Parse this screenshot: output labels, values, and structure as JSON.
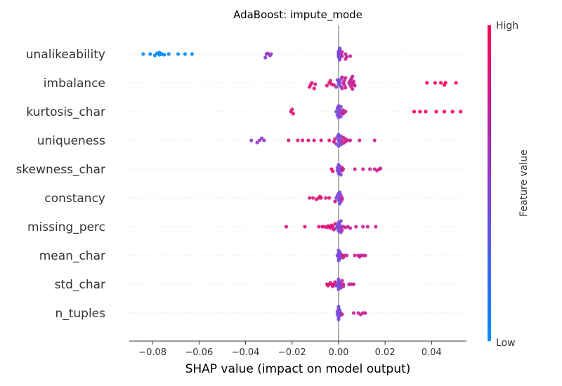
{
  "chart_data": {
    "type": "scatter",
    "subtype": "shap-beeswarm",
    "title": "AdaBoost: impute_mode",
    "xlabel": "SHAP value (impact on model output)",
    "xlim": [
      -0.09,
      0.055
    ],
    "xticks": [
      -0.08,
      -0.06,
      -0.04,
      -0.02,
      0.0,
      0.02,
      0.04
    ],
    "xtick_labels": [
      "−0.08",
      "−0.06",
      "−0.04",
      "−0.02",
      "0.00",
      "0.02",
      "0.04"
    ],
    "colorbar": {
      "label": "Feature value",
      "high": "High",
      "low": "Low",
      "low_color": "#008bfb",
      "high_color": "#ff0052"
    },
    "features": [
      {
        "name": "unalikeability",
        "points": [
          [
            -0.084,
            0
          ],
          [
            -0.081,
            0
          ],
          [
            -0.079,
            0.2
          ],
          [
            -0.078,
            -0.1
          ],
          [
            -0.077,
            0.1
          ],
          [
            -0.077,
            -0.2
          ],
          [
            -0.076,
            0
          ],
          [
            -0.075,
            0.1
          ],
          [
            -0.073,
            0
          ],
          [
            -0.069,
            0
          ],
          [
            -0.066,
            0
          ],
          [
            -0.063,
            0
          ],
          [
            -0.0315,
            0.5
          ],
          [
            -0.031,
            0
          ],
          [
            -0.0305,
            -0.1
          ],
          [
            -0.0295,
            0.2
          ],
          [
            -0.029,
            0
          ],
          [
            0.0,
            0
          ],
          [
            0.0,
            0.2
          ],
          [
            0.0,
            -0.2
          ],
          [
            0.0,
            0.4
          ],
          [
            0.0,
            -0.4
          ],
          [
            0.0005,
            0.6
          ],
          [
            0.0005,
            -0.6
          ],
          [
            0.0005,
            0.8
          ],
          [
            0.0005,
            -0.8
          ],
          [
            0.001,
            0.1
          ],
          [
            0.001,
            -0.1
          ],
          [
            0.0015,
            0.3
          ],
          [
            0.0015,
            -0.3
          ],
          [
            0.003,
            0.7
          ],
          [
            0.003,
            0
          ],
          [
            0.0035,
            0.4
          ],
          [
            0.005,
            0.3
          ]
        ]
      },
      {
        "name": "imbalance",
        "points": [
          [
            -0.0125,
            0.6
          ],
          [
            -0.012,
            0.3
          ],
          [
            -0.0115,
            0
          ],
          [
            -0.0105,
            0.8
          ],
          [
            -0.01,
            0.2
          ],
          [
            -0.005,
            0.4
          ],
          [
            -0.004,
            0
          ],
          [
            -0.0035,
            -0.3
          ],
          [
            -0.003,
            0.2
          ],
          [
            -0.002,
            0.3
          ],
          [
            -0.001,
            0.6
          ],
          [
            -0.0005,
            -0.4
          ],
          [
            0.0,
            0.2
          ],
          [
            0.0,
            -0.2
          ],
          [
            0.0005,
            0
          ],
          [
            0.001,
            0.5
          ],
          [
            0.001,
            -0.5
          ],
          [
            0.0015,
            0.8
          ],
          [
            0.0015,
            -0.8
          ],
          [
            0.002,
            0
          ],
          [
            0.0025,
            0.3
          ],
          [
            0.0025,
            -0.3
          ],
          [
            0.003,
            0.7
          ],
          [
            0.003,
            -0.7
          ],
          [
            0.0045,
            0
          ],
          [
            0.005,
            0.3
          ],
          [
            0.005,
            -0.3
          ],
          [
            0.0055,
            0.6
          ],
          [
            0.0055,
            -0.6
          ],
          [
            0.006,
            0
          ],
          [
            0.006,
            0.9
          ],
          [
            0.006,
            -0.9
          ],
          [
            0.0065,
            0.2
          ],
          [
            0.0065,
            -0.2
          ],
          [
            0.007,
            0.4
          ],
          [
            0.038,
            0
          ],
          [
            0.0415,
            0
          ],
          [
            0.044,
            0
          ],
          [
            0.0455,
            0.3
          ],
          [
            0.046,
            0
          ],
          [
            0.0505,
            0
          ]
        ]
      },
      {
        "name": "kurtosis_char",
        "points": [
          [
            -0.0205,
            0
          ],
          [
            -0.0195,
            0.3
          ],
          [
            -0.02,
            -0.3
          ],
          [
            -0.001,
            0
          ],
          [
            -0.0005,
            0.5
          ],
          [
            -0.0005,
            -0.5
          ],
          [
            0.0,
            0.2
          ],
          [
            0.0,
            -0.2
          ],
          [
            0.0,
            0.8
          ],
          [
            0.0,
            -0.8
          ],
          [
            0.0005,
            0.4
          ],
          [
            0.0005,
            -0.4
          ],
          [
            0.001,
            0
          ],
          [
            0.001,
            0.7
          ],
          [
            0.001,
            -0.7
          ],
          [
            0.0015,
            0.2
          ],
          [
            0.002,
            -0.2
          ],
          [
            0.002,
            0.3
          ],
          [
            0.003,
            0
          ],
          [
            0.0325,
            0
          ],
          [
            0.035,
            0
          ],
          [
            0.0375,
            0
          ],
          [
            0.042,
            0
          ],
          [
            0.0455,
            0
          ],
          [
            0.049,
            0
          ],
          [
            0.0525,
            0
          ]
        ]
      },
      {
        "name": "uniqueness",
        "points": [
          [
            -0.0375,
            0
          ],
          [
            -0.035,
            0.3
          ],
          [
            -0.034,
            0
          ],
          [
            -0.033,
            -0.3
          ],
          [
            -0.032,
            0
          ],
          [
            -0.0215,
            0
          ],
          [
            -0.0175,
            0
          ],
          [
            -0.0155,
            0
          ],
          [
            -0.013,
            0
          ],
          [
            -0.0105,
            0
          ],
          [
            -0.0075,
            0
          ],
          [
            -0.004,
            0
          ],
          [
            -0.002,
            0.2
          ],
          [
            -0.0015,
            -0.2
          ],
          [
            -0.001,
            0.5
          ],
          [
            -0.0005,
            -0.5
          ],
          [
            0.0,
            0
          ],
          [
            0.0,
            0.8
          ],
          [
            0.0,
            -0.8
          ],
          [
            0.0005,
            0.3
          ],
          [
            0.0005,
            -0.3
          ],
          [
            0.001,
            0.6
          ],
          [
            0.001,
            -0.6
          ],
          [
            0.0015,
            0
          ],
          [
            0.002,
            0.4
          ],
          [
            0.002,
            -0.4
          ],
          [
            0.003,
            0.2
          ],
          [
            0.003,
            -0.2
          ],
          [
            0.004,
            0
          ],
          [
            0.005,
            0
          ],
          [
            0.009,
            0
          ],
          [
            0.0155,
            0
          ]
        ]
      },
      {
        "name": "skewness_char",
        "points": [
          [
            -0.003,
            0
          ],
          [
            -0.0025,
            0.3
          ],
          [
            -0.0005,
            0.2
          ],
          [
            -0.0005,
            -0.2
          ],
          [
            0.0,
            0
          ],
          [
            0.0,
            0.6
          ],
          [
            0.0,
            -0.6
          ],
          [
            0.0005,
            0.4
          ],
          [
            0.0005,
            -0.4
          ],
          [
            0.001,
            0
          ],
          [
            0.001,
            0.8
          ],
          [
            0.0015,
            0.2
          ],
          [
            0.0015,
            -0.2
          ],
          [
            0.002,
            0
          ],
          [
            0.007,
            0
          ],
          [
            0.0105,
            0
          ],
          [
            0.0135,
            0
          ],
          [
            0.0155,
            0
          ],
          [
            0.0165,
            0.2
          ],
          [
            0.0175,
            0
          ],
          [
            0.018,
            -0.1
          ]
        ]
      },
      {
        "name": "constancy",
        "points": [
          [
            -0.0125,
            0
          ],
          [
            -0.011,
            0
          ],
          [
            -0.0095,
            0.2
          ],
          [
            -0.0085,
            0
          ],
          [
            -0.008,
            -0.2
          ],
          [
            -0.0075,
            0
          ],
          [
            -0.0055,
            0
          ],
          [
            -0.004,
            0
          ],
          [
            -0.0015,
            0.5
          ],
          [
            -0.001,
            0
          ],
          [
            -0.0005,
            -0.3
          ],
          [
            0.0,
            0.3
          ],
          [
            0.0,
            -0.6
          ],
          [
            0.0005,
            0
          ],
          [
            0.0005,
            0.8
          ],
          [
            0.0005,
            -0.8
          ],
          [
            0.001,
            0.5
          ],
          [
            0.001,
            -0.4
          ],
          [
            0.0015,
            0
          ],
          [
            0.0015,
            0.2
          ]
        ]
      },
      {
        "name": "missing_perc",
        "points": [
          [
            -0.0225,
            0
          ],
          [
            -0.0145,
            0
          ],
          [
            -0.0085,
            0
          ],
          [
            -0.007,
            0
          ],
          [
            -0.006,
            0
          ],
          [
            -0.005,
            0.1
          ],
          [
            -0.0045,
            -0.1
          ],
          [
            -0.004,
            0
          ],
          [
            -0.0035,
            0.2
          ],
          [
            -0.003,
            -0.2
          ],
          [
            -0.0025,
            0
          ],
          [
            -0.002,
            0.4
          ],
          [
            -0.0015,
            -0.4
          ],
          [
            -0.001,
            0.2
          ],
          [
            -0.0005,
            -0.2
          ],
          [
            0.0,
            0
          ],
          [
            0.0,
            0.6
          ],
          [
            0.0,
            -0.6
          ],
          [
            0.0005,
            0.3
          ],
          [
            0.0005,
            -0.3
          ],
          [
            0.001,
            0
          ],
          [
            0.001,
            0.8
          ],
          [
            0.001,
            -0.8
          ],
          [
            0.0015,
            0.5
          ],
          [
            0.002,
            0
          ],
          [
            0.003,
            0.1
          ],
          [
            0.004,
            0
          ],
          [
            0.005,
            0.2
          ],
          [
            0.0075,
            0
          ],
          [
            0.0105,
            0
          ],
          [
            0.0125,
            0
          ],
          [
            0.016,
            0
          ]
        ]
      },
      {
        "name": "mean_char",
        "points": [
          [
            -0.0005,
            0
          ],
          [
            0.0,
            0.3
          ],
          [
            0.0,
            -0.3
          ],
          [
            0.0,
            0.7
          ],
          [
            0.0,
            -0.7
          ],
          [
            0.0005,
            0
          ],
          [
            0.0005,
            0.5
          ],
          [
            0.0005,
            -0.5
          ],
          [
            0.001,
            0.2
          ],
          [
            0.001,
            -0.2
          ],
          [
            0.0015,
            0
          ],
          [
            0.002,
            0.3
          ],
          [
            0.0025,
            0
          ],
          [
            0.0035,
            0
          ],
          [
            0.007,
            0
          ],
          [
            0.0085,
            0
          ],
          [
            0.009,
            0.2
          ],
          [
            0.0095,
            0
          ],
          [
            0.0105,
            0
          ],
          [
            0.0115,
            0
          ]
        ]
      },
      {
        "name": "std_char",
        "points": [
          [
            -0.005,
            0
          ],
          [
            -0.0045,
            0.2
          ],
          [
            -0.004,
            0
          ],
          [
            -0.0035,
            -0.2
          ],
          [
            -0.003,
            0
          ],
          [
            -0.0025,
            0.3
          ],
          [
            -0.002,
            0
          ],
          [
            -0.0015,
            -0.3
          ],
          [
            -0.001,
            0.2
          ],
          [
            -0.0005,
            0
          ],
          [
            0.0,
            0.4
          ],
          [
            0.0,
            -0.4
          ],
          [
            0.0,
            0.7
          ],
          [
            0.0,
            -0.7
          ],
          [
            0.0005,
            0.2
          ],
          [
            0.0005,
            -0.2
          ],
          [
            0.001,
            0
          ],
          [
            0.001,
            0.5
          ],
          [
            0.0015,
            -0.5
          ],
          [
            0.002,
            0
          ],
          [
            0.002,
            0.3
          ],
          [
            0.0045,
            0
          ],
          [
            0.0055,
            0
          ],
          [
            0.0065,
            0
          ]
        ]
      },
      {
        "name": "n_tuples",
        "points": [
          [
            -0.0005,
            0.2
          ],
          [
            -0.0005,
            -0.2
          ],
          [
            0.0,
            0
          ],
          [
            0.0,
            0.6
          ],
          [
            0.0,
            -0.6
          ],
          [
            0.0,
            0.9
          ],
          [
            0.0,
            -0.9
          ],
          [
            0.0005,
            0.4
          ],
          [
            0.0005,
            -0.4
          ],
          [
            0.001,
            0
          ],
          [
            0.0015,
            0.2
          ],
          [
            0.0065,
            0
          ],
          [
            0.0085,
            0
          ],
          [
            0.0095,
            0.2
          ],
          [
            0.0105,
            0
          ],
          [
            0.0115,
            0
          ]
        ]
      }
    ]
  }
}
